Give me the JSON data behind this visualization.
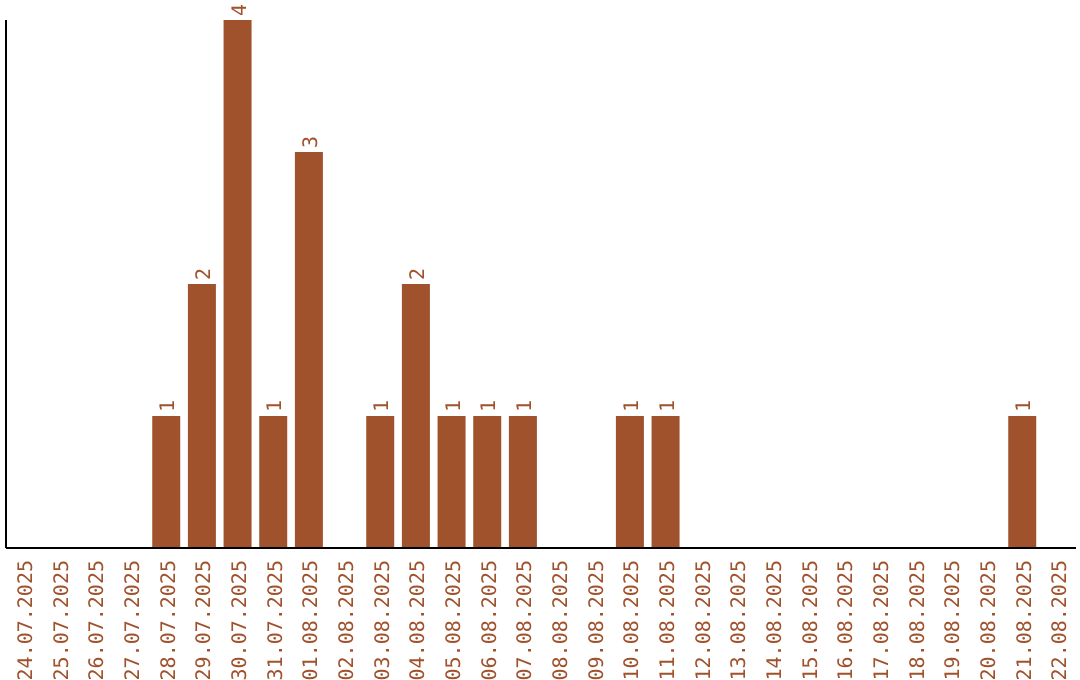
{
  "chart_data": {
    "type": "bar",
    "categories": [
      "24.07.2025",
      "25.07.2025",
      "26.07.2025",
      "27.07.2025",
      "28.07.2025",
      "29.07.2025",
      "30.07.2025",
      "31.07.2025",
      "01.08.2025",
      "02.08.2025",
      "03.08.2025",
      "04.08.2025",
      "05.08.2025",
      "06.08.2025",
      "07.08.2025",
      "08.08.2025",
      "09.08.2025",
      "10.08.2025",
      "11.08.2025",
      "12.08.2025",
      "13.08.2025",
      "14.08.2025",
      "15.08.2025",
      "16.08.2025",
      "17.08.2025",
      "18.08.2025",
      "19.08.2025",
      "20.08.2025",
      "21.08.2025",
      "22.08.2025"
    ],
    "values": [
      0,
      0,
      0,
      0,
      1,
      2,
      4,
      1,
      3,
      0,
      1,
      2,
      1,
      1,
      1,
      0,
      0,
      1,
      1,
      0,
      0,
      0,
      0,
      0,
      0,
      0,
      0,
      0,
      1,
      0
    ],
    "value_labels": [
      null,
      null,
      null,
      null,
      "1",
      "2",
      "4",
      "1",
      "3",
      null,
      "1",
      "2",
      "1",
      "1",
      "1",
      null,
      null,
      "1",
      "1",
      null,
      null,
      null,
      null,
      null,
      null,
      null,
      null,
      null,
      "1",
      null
    ],
    "color": "#a0522d",
    "grid": false,
    "legend": false
  }
}
